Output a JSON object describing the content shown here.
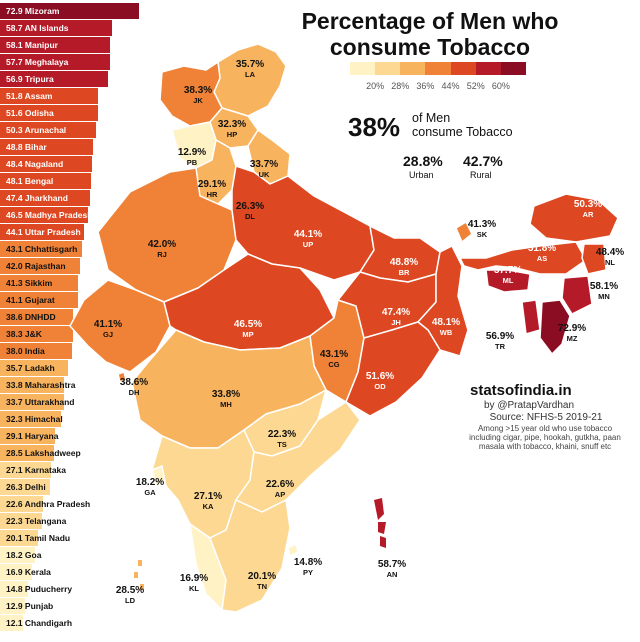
{
  "title_line1": "Percentage of Men who",
  "title_line2": "consume Tobacco",
  "legend": {
    "ticks": [
      "20%",
      "28%",
      "36%",
      "44%",
      "52%",
      "60%"
    ],
    "colors": [
      "#fff2c4",
      "#fcd892",
      "#f8b35e",
      "#ef8236",
      "#dd4822",
      "#b51a28",
      "#8a0d24"
    ]
  },
  "headline": {
    "value": "38%",
    "label_line1": "of Men",
    "label_line2": "consume Tobacco",
    "urban_value": "28.8%",
    "urban_label": "Urban",
    "rural_value": "42.7%",
    "rural_label": "Rural"
  },
  "ranking": [
    {
      "value": 72.9,
      "label": "72.9 Mizoram"
    },
    {
      "value": 58.7,
      "label": "58.7 AN Islands"
    },
    {
      "value": 58.1,
      "label": "58.1 Manipur"
    },
    {
      "value": 57.7,
      "label": "57.7 Meghalaya"
    },
    {
      "value": 56.9,
      "label": "56.9 Tripura"
    },
    {
      "value": 51.8,
      "label": "51.8 Assam"
    },
    {
      "value": 51.6,
      "label": "51.6 Odisha"
    },
    {
      "value": 50.3,
      "label": "50.3 Arunachal"
    },
    {
      "value": 48.8,
      "label": "48.8 Bihar"
    },
    {
      "value": 48.4,
      "label": "48.4 Nagaland"
    },
    {
      "value": 48.1,
      "label": "48.1 Bengal"
    },
    {
      "value": 47.4,
      "label": "47.4 Jharkhand"
    },
    {
      "value": 46.5,
      "label": "46.5 Madhya Pradesh"
    },
    {
      "value": 44.1,
      "label": "44.1 Uttar Pradesh"
    },
    {
      "value": 43.1,
      "label": "43.1 Chhattisgarh"
    },
    {
      "value": 42.0,
      "label": "42.0 Rajasthan"
    },
    {
      "value": 41.3,
      "label": "41.3 Sikkim"
    },
    {
      "value": 41.1,
      "label": "41.1 Gujarat"
    },
    {
      "value": 38.6,
      "label": "38.6 DNHDD"
    },
    {
      "value": 38.3,
      "label": "38.3 J&K"
    },
    {
      "value": 38.0,
      "label": "38.0 India"
    },
    {
      "value": 35.7,
      "label": "35.7 Ladakh"
    },
    {
      "value": 33.8,
      "label": "33.8 Maharashtra"
    },
    {
      "value": 33.7,
      "label": "33.7 Uttarakhand"
    },
    {
      "value": 32.3,
      "label": "32.3 Himachal"
    },
    {
      "value": 29.1,
      "label": "29.1 Haryana"
    },
    {
      "value": 28.5,
      "label": "28.5 Lakshadweep"
    },
    {
      "value": 27.1,
      "label": "27.1 Karnataka"
    },
    {
      "value": 26.3,
      "label": "26.3 Delhi"
    },
    {
      "value": 22.6,
      "label": "22.6 Andhra Pradesh"
    },
    {
      "value": 22.3,
      "label": "22.3 Telangana"
    },
    {
      "value": 20.1,
      "label": "20.1 Tamil Nadu"
    },
    {
      "value": 18.2,
      "label": "18.2 Goa"
    },
    {
      "value": 16.9,
      "label": "16.9 Kerala"
    },
    {
      "value": 14.8,
      "label": "14.8 Puducherry"
    },
    {
      "value": 12.9,
      "label": "12.9 Punjab"
    },
    {
      "value": 12.1,
      "label": "12.1 Chandigarh"
    }
  ],
  "map_labels": [
    {
      "key": "LA",
      "value": "35.7%",
      "code": "LA",
      "pct": 35.7
    },
    {
      "key": "JK",
      "value": "38.3%",
      "code": "JK",
      "pct": 38.3
    },
    {
      "key": "HP",
      "value": "32.3%",
      "code": "HP",
      "pct": 32.3
    },
    {
      "key": "PB",
      "value": "12.9%",
      "code": "PB",
      "pct": 12.9
    },
    {
      "key": "UK",
      "value": "33.7%",
      "code": "UK",
      "pct": 33.7
    },
    {
      "key": "HR",
      "value": "29.1%",
      "code": "HR",
      "pct": 29.1
    },
    {
      "key": "DL",
      "value": "26.3%",
      "code": "DL",
      "pct": 26.3
    },
    {
      "key": "RJ",
      "value": "42.0%",
      "code": "RJ",
      "pct": 42.0
    },
    {
      "key": "UP",
      "value": "44.1%",
      "code": "UP",
      "pct": 44.1
    },
    {
      "key": "SK",
      "value": "41.3%",
      "code": "SK",
      "pct": 41.3
    },
    {
      "key": "AR",
      "value": "50.3%",
      "code": "AR",
      "pct": 50.3
    },
    {
      "key": "AS",
      "value": "51.8%",
      "code": "AS",
      "pct": 51.8
    },
    {
      "key": "NL",
      "value": "48.4%",
      "code": "NL",
      "pct": 48.4
    },
    {
      "key": "ML",
      "value": "57.7%",
      "code": "ML",
      "pct": 57.7
    },
    {
      "key": "MN",
      "value": "58.1%",
      "code": "MN",
      "pct": 58.1
    },
    {
      "key": "MZ",
      "value": "72.9%",
      "code": "MZ",
      "pct": 72.9
    },
    {
      "key": "TR",
      "value": "56.9%",
      "code": "TR",
      "pct": 56.9
    },
    {
      "key": "BR",
      "value": "48.8%",
      "code": "BR",
      "pct": 48.8
    },
    {
      "key": "JH",
      "value": "47.4%",
      "code": "JH",
      "pct": 47.4
    },
    {
      "key": "WB",
      "value": "48.1%",
      "code": "WB",
      "pct": 48.1
    },
    {
      "key": "GJ",
      "value": "41.1%",
      "code": "GJ",
      "pct": 41.1
    },
    {
      "key": "MP",
      "value": "46.5%",
      "code": "MP",
      "pct": 46.5
    },
    {
      "key": "CG",
      "value": "43.1%",
      "code": "CG",
      "pct": 43.1
    },
    {
      "key": "OD",
      "value": "51.6%",
      "code": "OD",
      "pct": 51.6
    },
    {
      "key": "DH",
      "value": "38.6%",
      "code": "DH",
      "pct": 38.6
    },
    {
      "key": "MH",
      "value": "33.8%",
      "code": "MH",
      "pct": 33.8
    },
    {
      "key": "TS",
      "value": "22.3%",
      "code": "TS",
      "pct": 22.3
    },
    {
      "key": "GA",
      "value": "18.2%",
      "code": "GA",
      "pct": 18.2
    },
    {
      "key": "KA",
      "value": "27.1%",
      "code": "KA",
      "pct": 27.1
    },
    {
      "key": "AP",
      "value": "22.6%",
      "code": "AP",
      "pct": 22.6
    },
    {
      "key": "PY",
      "value": "14.8%",
      "code": "PY",
      "pct": 14.8
    },
    {
      "key": "AN",
      "value": "58.7%",
      "code": "AN",
      "pct": 58.7
    },
    {
      "key": "KL",
      "value": "16.9%",
      "code": "KL",
      "pct": 16.9
    },
    {
      "key": "TN",
      "value": "20.1%",
      "code": "TN",
      "pct": 20.1
    },
    {
      "key": "LD",
      "value": "28.5%",
      "code": "LD",
      "pct": 28.5
    }
  ],
  "credits": {
    "brand": "statsofindia.in",
    "byline": "by @PratapVardhan",
    "source": "Source: NFHS-5 2019-21",
    "note": "Among >15 year old who use tobacco including cigar, pipe, hookah, gutkha, paan masala with tobacco, khaini, snuff etc"
  }
}
